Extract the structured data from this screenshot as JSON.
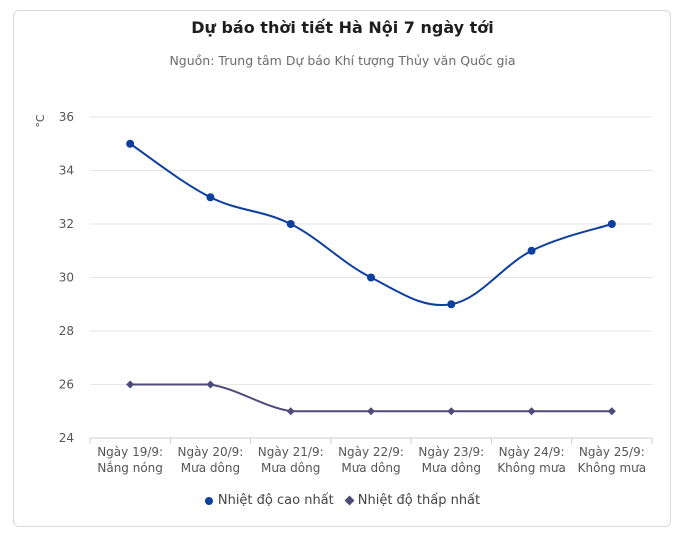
{
  "chart_data": {
    "type": "line",
    "title": "Dự báo thời tiết Hà Nội 7 ngày tới",
    "subtitle": "Nguồn: Trung tâm Dự báo Khí tượng Thủy văn Quốc gia",
    "ylabel": "°C",
    "xlabel": "",
    "categories": [
      [
        "Ngày 19/9:",
        "Nắng nóng"
      ],
      [
        "Ngày 20/9:",
        "Mưa dông"
      ],
      [
        "Ngày 21/9:",
        "Mưa dông"
      ],
      [
        "Ngày 22/9:",
        "Mưa dông"
      ],
      [
        "Ngày 23/9:",
        "Mưa dông"
      ],
      [
        "Ngày 24/9:",
        "Không mưa"
      ],
      [
        "Ngày 25/9:",
        "Không mưa"
      ]
    ],
    "ylim": [
      24,
      36
    ],
    "yticks": [
      24,
      26,
      28,
      30,
      32,
      34,
      36
    ],
    "grid": true,
    "legend": "bottom",
    "series": [
      {
        "name": "Nhiệt độ cao nhất",
        "values": [
          35,
          33,
          32,
          30,
          29,
          31,
          32
        ],
        "color": "#0d3f9e",
        "marker": "circle"
      },
      {
        "name": "Nhiệt độ thấp nhất",
        "values": [
          26,
          26,
          25,
          25,
          25,
          25,
          25
        ],
        "color": "#4e4a7a",
        "marker": "diamond"
      }
    ]
  }
}
